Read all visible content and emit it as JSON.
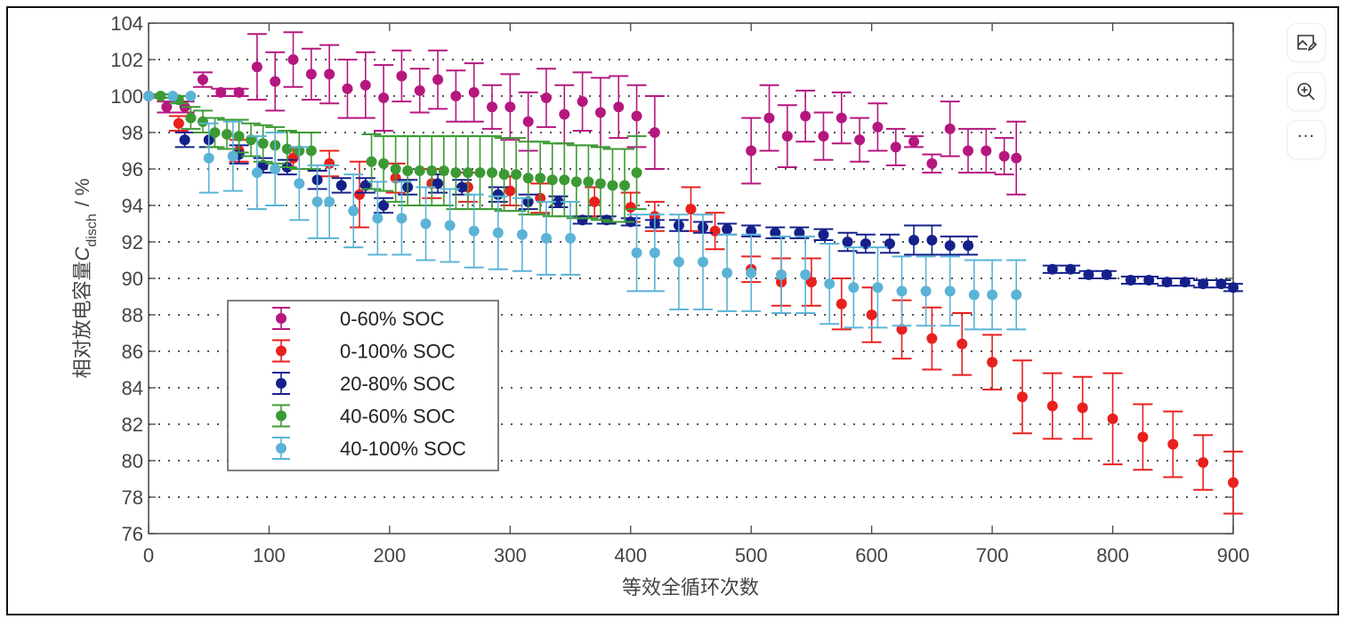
{
  "toolbar": {
    "buttons": [
      {
        "name": "edit-image",
        "icon": "image-edit-icon"
      },
      {
        "name": "zoom-in",
        "icon": "zoom-in-icon"
      },
      {
        "name": "more",
        "icon": "more-icon",
        "label": "···"
      }
    ]
  },
  "chart_data": {
    "type": "scatter",
    "title": "",
    "xlabel": "等效全循环次数",
    "ylabel_main": "相对放电容量",
    "ylabel_symbol": "C",
    "ylabel_subscript": "disch",
    "ylabel_unit": "/ %",
    "xlim": [
      0,
      900
    ],
    "ylim": [
      76,
      104
    ],
    "x_ticks": [
      0,
      100,
      200,
      300,
      400,
      500,
      600,
      700,
      800,
      900
    ],
    "y_ticks": [
      76,
      78,
      80,
      82,
      84,
      86,
      88,
      90,
      92,
      94,
      96,
      98,
      100,
      102,
      104
    ],
    "grid": "horizontal-dotted",
    "legend_position": "lower-left",
    "series": [
      {
        "name": "0-60% SOC",
        "color": "#b5177f",
        "points": [
          [
            0,
            100,
            0
          ],
          [
            15,
            99.4,
            0.3
          ],
          [
            30,
            99.4,
            0.3
          ],
          [
            45,
            100.9,
            0.4
          ],
          [
            60,
            100.2,
            0.2
          ],
          [
            75,
            100.2,
            0.2
          ],
          [
            90,
            101.6,
            1.8
          ],
          [
            105,
            100.8,
            1.6
          ],
          [
            120,
            102.0,
            1.5
          ],
          [
            135,
            101.2,
            1.4
          ],
          [
            150,
            101.2,
            1.6
          ],
          [
            165,
            100.4,
            1.6
          ],
          [
            180,
            100.6,
            1.8
          ],
          [
            195,
            99.9,
            1.8
          ],
          [
            210,
            101.1,
            1.4
          ],
          [
            225,
            100.3,
            1.2
          ],
          [
            240,
            100.9,
            1.6
          ],
          [
            255,
            100.0,
            1.4
          ],
          [
            270,
            100.2,
            1.6
          ],
          [
            285,
            99.4,
            1.2
          ],
          [
            300,
            99.4,
            1.8
          ],
          [
            315,
            98.6,
            1.6
          ],
          [
            330,
            99.9,
            1.6
          ],
          [
            345,
            99.0,
            1.6
          ],
          [
            360,
            99.7,
            1.6
          ],
          [
            375,
            99.1,
            1.9
          ],
          [
            390,
            99.4,
            1.7
          ],
          [
            405,
            98.9,
            1.7
          ],
          [
            420,
            98.0,
            2.0
          ],
          [
            500,
            97.0,
            1.8
          ],
          [
            515,
            98.8,
            1.8
          ],
          [
            530,
            97.8,
            1.7
          ],
          [
            545,
            98.9,
            1.4
          ],
          [
            560,
            97.8,
            1.3
          ],
          [
            575,
            98.8,
            1.4
          ],
          [
            590,
            97.6,
            1.2
          ],
          [
            605,
            98.3,
            1.3
          ],
          [
            620,
            97.2,
            1.0
          ],
          [
            635,
            97.5,
            0.3
          ],
          [
            650,
            96.3,
            0.5
          ],
          [
            665,
            98.2,
            1.5
          ],
          [
            680,
            97.0,
            1.2
          ],
          [
            695,
            97.0,
            1.2
          ],
          [
            710,
            96.7,
            1.0
          ],
          [
            720,
            96.6,
            2.0
          ]
        ]
      },
      {
        "name": "0-100% SOC",
        "color": "#e8201e",
        "points": [
          [
            25,
            98.5,
            0.4
          ],
          [
            75,
            97.0,
            0.6
          ],
          [
            120,
            96.6,
            0.6
          ],
          [
            150,
            96.3,
            0.7
          ],
          [
            175,
            94.6,
            1.8
          ],
          [
            205,
            95.5,
            0.8
          ],
          [
            235,
            95.2,
            0.8
          ],
          [
            265,
            95.0,
            0.8
          ],
          [
            300,
            94.8,
            0.8
          ],
          [
            325,
            94.4,
            0.8
          ],
          [
            370,
            94.2,
            0.8
          ],
          [
            400,
            93.9,
            0.8
          ],
          [
            420,
            93.4,
            0.8
          ],
          [
            450,
            93.8,
            1.2
          ],
          [
            470,
            92.6,
            1.0
          ],
          [
            500,
            90.5,
            0.7
          ],
          [
            525,
            89.8,
            1.3
          ],
          [
            550,
            89.8,
            1.3
          ],
          [
            575,
            88.6,
            1.4
          ],
          [
            600,
            88.0,
            1.5
          ],
          [
            625,
            87.2,
            1.6
          ],
          [
            650,
            86.7,
            1.7
          ],
          [
            675,
            86.4,
            1.7
          ],
          [
            700,
            85.4,
            1.5
          ],
          [
            725,
            83.5,
            2.0
          ],
          [
            750,
            83.0,
            1.8
          ],
          [
            775,
            82.9,
            1.7
          ],
          [
            800,
            82.3,
            2.5
          ],
          [
            825,
            81.3,
            1.8
          ],
          [
            850,
            80.9,
            1.8
          ],
          [
            875,
            79.9,
            1.5
          ],
          [
            900,
            78.8,
            1.7
          ]
        ]
      },
      {
        "name": "20-80% SOC",
        "color": "#15208a",
        "points": [
          [
            30,
            97.6,
            0.4
          ],
          [
            50,
            97.6,
            0.4
          ],
          [
            75,
            96.8,
            0.5
          ],
          [
            95,
            96.2,
            0.4
          ],
          [
            115,
            96.1,
            0.4
          ],
          [
            140,
            95.4,
            0.5
          ],
          [
            160,
            95.1,
            0.4
          ],
          [
            180,
            95.1,
            0.4
          ],
          [
            195,
            94.0,
            0.4
          ],
          [
            215,
            95.0,
            0.4
          ],
          [
            240,
            95.2,
            0.5
          ],
          [
            260,
            95.0,
            0.4
          ],
          [
            290,
            94.6,
            0.4
          ],
          [
            315,
            94.2,
            0.4
          ],
          [
            340,
            94.2,
            0.3
          ],
          [
            360,
            93.2,
            0.2
          ],
          [
            380,
            93.2,
            0.2
          ],
          [
            400,
            93.1,
            0.2
          ],
          [
            420,
            93.0,
            0.2
          ],
          [
            440,
            92.9,
            0.3
          ],
          [
            460,
            92.8,
            0.3
          ],
          [
            480,
            92.7,
            0.3
          ],
          [
            500,
            92.6,
            0.3
          ],
          [
            520,
            92.5,
            0.3
          ],
          [
            540,
            92.5,
            0.3
          ],
          [
            560,
            92.4,
            0.3
          ],
          [
            580,
            92.0,
            0.5
          ],
          [
            595,
            91.9,
            0.5
          ],
          [
            615,
            91.9,
            0.5
          ],
          [
            635,
            92.1,
            0.8
          ],
          [
            650,
            92.1,
            0.8
          ],
          [
            665,
            91.8,
            0.5
          ],
          [
            680,
            91.8,
            0.5
          ],
          [
            750,
            90.5,
            0.2
          ],
          [
            765,
            90.5,
            0.2
          ],
          [
            780,
            90.2,
            0.2
          ],
          [
            795,
            90.2,
            0.2
          ],
          [
            815,
            89.9,
            0.2
          ],
          [
            830,
            89.9,
            0.2
          ],
          [
            845,
            89.8,
            0.2
          ],
          [
            860,
            89.8,
            0.2
          ],
          [
            875,
            89.7,
            0.2
          ],
          [
            890,
            89.7,
            0.2
          ],
          [
            900,
            89.5,
            0.2
          ]
        ]
      },
      {
        "name": "40-60% SOC",
        "color": "#3c9a34",
        "points": [
          [
            10,
            100.0,
            0.1
          ],
          [
            25,
            99.8,
            0.2
          ],
          [
            35,
            98.8,
            0.6
          ],
          [
            45,
            98.6,
            0.6
          ],
          [
            55,
            98.0,
            0.8
          ],
          [
            65,
            97.9,
            0.8
          ],
          [
            75,
            97.8,
            0.9
          ],
          [
            85,
            97.6,
            0.9
          ],
          [
            95,
            97.4,
            1.0
          ],
          [
            105,
            97.3,
            1.0
          ],
          [
            115,
            97.1,
            1.0
          ],
          [
            125,
            97.0,
            1.0
          ],
          [
            135,
            97.0,
            1.0
          ],
          [
            185,
            96.4,
            1.5
          ],
          [
            195,
            96.3,
            1.5
          ],
          [
            205,
            96.0,
            1.8
          ],
          [
            215,
            95.9,
            1.9
          ],
          [
            225,
            95.9,
            1.9
          ],
          [
            235,
            95.9,
            1.9
          ],
          [
            245,
            95.9,
            1.9
          ],
          [
            255,
            95.8,
            2.0
          ],
          [
            265,
            95.8,
            2.0
          ],
          [
            275,
            95.8,
            2.0
          ],
          [
            285,
            95.8,
            2.0
          ],
          [
            295,
            95.7,
            2.0
          ],
          [
            305,
            95.7,
            2.0
          ],
          [
            315,
            95.5,
            2.0
          ],
          [
            325,
            95.5,
            2.0
          ],
          [
            335,
            95.4,
            2.0
          ],
          [
            345,
            95.4,
            2.0
          ],
          [
            355,
            95.3,
            2.0
          ],
          [
            365,
            95.3,
            2.0
          ],
          [
            375,
            95.2,
            2.0
          ],
          [
            385,
            95.1,
            2.0
          ],
          [
            395,
            95.1,
            2.0
          ],
          [
            405,
            95.8,
            2.0
          ]
        ]
      },
      {
        "name": "40-100% SOC",
        "color": "#5bb3d6",
        "points": [
          [
            0,
            100.0,
            0
          ],
          [
            20,
            100.0,
            0
          ],
          [
            35,
            100.0,
            0
          ],
          [
            50,
            96.6,
            1.9
          ],
          [
            70,
            96.7,
            1.9
          ],
          [
            90,
            95.8,
            2.0
          ],
          [
            105,
            96.0,
            2.0
          ],
          [
            125,
            95.2,
            2.0
          ],
          [
            140,
            94.2,
            2.0
          ],
          [
            150,
            94.2,
            2.0
          ],
          [
            170,
            93.7,
            2.0
          ],
          [
            190,
            93.3,
            2.0
          ],
          [
            210,
            93.3,
            2.0
          ],
          [
            230,
            93.0,
            2.0
          ],
          [
            250,
            92.9,
            2.0
          ],
          [
            270,
            92.6,
            2.0
          ],
          [
            290,
            92.5,
            2.0
          ],
          [
            310,
            92.4,
            2.0
          ],
          [
            330,
            92.2,
            2.0
          ],
          [
            350,
            92.2,
            2.0
          ],
          [
            405,
            91.4,
            2.1
          ],
          [
            420,
            91.4,
            2.1
          ],
          [
            440,
            90.9,
            2.6
          ],
          [
            460,
            90.9,
            2.6
          ],
          [
            480,
            90.3,
            2.1
          ],
          [
            500,
            90.3,
            2.1
          ],
          [
            525,
            90.2,
            2.1
          ],
          [
            545,
            90.2,
            2.1
          ],
          [
            565,
            89.7,
            2.2
          ],
          [
            585,
            89.5,
            2.2
          ],
          [
            605,
            89.5,
            2.2
          ],
          [
            625,
            89.3,
            1.9
          ],
          [
            645,
            89.3,
            1.9
          ],
          [
            665,
            89.3,
            1.9
          ],
          [
            685,
            89.1,
            1.9
          ],
          [
            700,
            89.1,
            1.9
          ],
          [
            720,
            89.1,
            1.9
          ]
        ]
      }
    ]
  }
}
